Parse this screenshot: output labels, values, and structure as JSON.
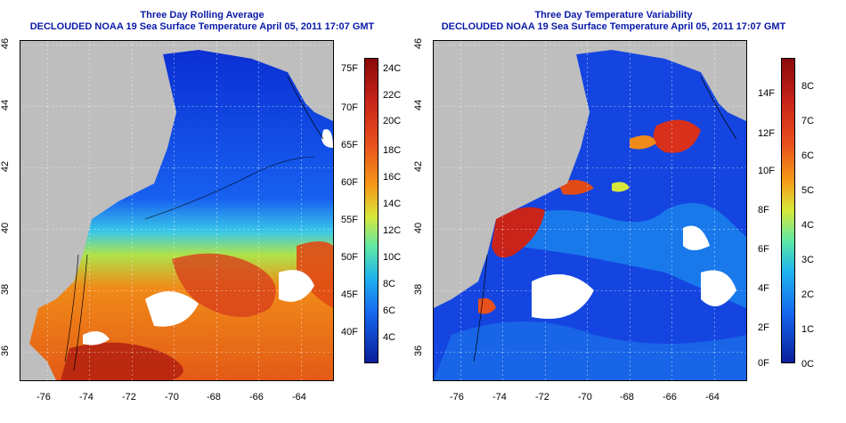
{
  "left_panel": {
    "title_line1": "Three Day Rolling Average",
    "title_line2": "DECLOUDED NOAA 19 Sea Surface Temperature April 05, 2011 17:07 GMT",
    "x_ticks": [
      "-76",
      "-74",
      "-72",
      "-70",
      "-68",
      "-66",
      "-64"
    ],
    "y_ticks": [
      "36",
      "38",
      "40",
      "42",
      "44",
      "46"
    ],
    "colorbar_f": [
      "75F",
      "70F",
      "65F",
      "60F",
      "55F",
      "50F",
      "45F",
      "40F"
    ],
    "colorbar_c": [
      "24C",
      "22C",
      "20C",
      "18C",
      "16C",
      "14C",
      "12C",
      "10C",
      "8C",
      "6C",
      "4C"
    ]
  },
  "right_panel": {
    "title_line1": "Three Day Temperature Variability",
    "title_line2": "DECLOUDED NOAA 19 Sea Surface Temperature April 05, 2011 17:07 GMT",
    "x_ticks": [
      "-76",
      "-74",
      "-72",
      "-70",
      "-68",
      "-66",
      "-64"
    ],
    "y_ticks": [
      "36",
      "38",
      "40",
      "42",
      "44",
      "46"
    ],
    "colorbar_f": [
      "14F",
      "12F",
      "10F",
      "8F",
      "6F",
      "4F",
      "2F",
      "0F"
    ],
    "colorbar_c": [
      "8C",
      "7C",
      "6C",
      "5C",
      "4C",
      "3C",
      "2C",
      "1C",
      "0C"
    ]
  },
  "colors": {
    "title": "#0a1aa8",
    "land": "#bebebe",
    "cold": "#0a2ecf",
    "warm": "#e0581a"
  }
}
